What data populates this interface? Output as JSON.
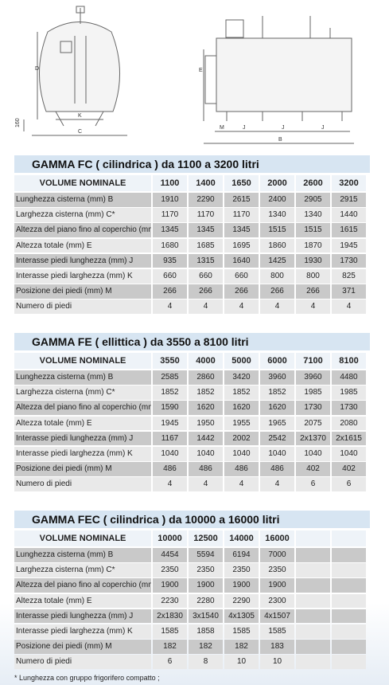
{
  "drawings": {
    "labels": [
      "D",
      "K",
      "C",
      "160",
      "E",
      "M",
      "J",
      "J",
      "J",
      "B"
    ]
  },
  "tables": [
    {
      "title": "GAMMA FC ( cilindrica ) da 1100 a 3200 litri",
      "header": [
        "VOLUME NOMINALE",
        "1100",
        "1400",
        "1650",
        "2000",
        "2600",
        "3200"
      ],
      "rows": [
        [
          "Lunghezza cisterna (mm) B",
          "1910",
          "2290",
          "2615",
          "2400",
          "2905",
          "2915"
        ],
        [
          "Larghezza cisterna (mm) C*",
          "1170",
          "1170",
          "1170",
          "1340",
          "1340",
          "1440"
        ],
        [
          "Altezza del piano fino al coperchio (mm) D",
          "1345",
          "1345",
          "1345",
          "1515",
          "1515",
          "1615"
        ],
        [
          "Altezza totale (mm) E",
          "1680",
          "1685",
          "1695",
          "1860",
          "1870",
          "1945"
        ],
        [
          "Interasse piedi lunghezza (mm) J",
          "935",
          "1315",
          "1640",
          "1425",
          "1930",
          "1730"
        ],
        [
          "Interasse piedi larghezza (mm) K",
          "660",
          "660",
          "660",
          "800",
          "800",
          "825"
        ],
        [
          "Posizione dei piedi (mm) M",
          "266",
          "266",
          "266",
          "266",
          "266",
          "371"
        ],
        [
          "Numero di piedi",
          "4",
          "4",
          "4",
          "4",
          "4",
          "4"
        ]
      ]
    },
    {
      "title": "GAMMA FE ( ellittica ) da 3550 a 8100 litri",
      "header": [
        "VOLUME NOMINALE",
        "3550",
        "4000",
        "5000",
        "6000",
        "7100",
        "8100"
      ],
      "rows": [
        [
          "Lunghezza cisterna (mm) B",
          "2585",
          "2860",
          "3420",
          "3960",
          "3960",
          "4480"
        ],
        [
          "Larghezza cisterna (mm) C*",
          "1852",
          "1852",
          "1852",
          "1852",
          "1985",
          "1985"
        ],
        [
          "Altezza del piano fino al coperchio (mm) D",
          "1590",
          "1620",
          "1620",
          "1620",
          "1730",
          "1730"
        ],
        [
          "Altezza totale (mm) E",
          "1945",
          "1950",
          "1955",
          "1965",
          "2075",
          "2080"
        ],
        [
          "Interasse piedi lunghezza (mm) J",
          "1167",
          "1442",
          "2002",
          "2542",
          "2x1370",
          "2x1615"
        ],
        [
          "Interasse piedi larghezza (mm) K",
          "1040",
          "1040",
          "1040",
          "1040",
          "1040",
          "1040"
        ],
        [
          "Posizione dei piedi (mm) M",
          "486",
          "486",
          "486",
          "486",
          "402",
          "402"
        ],
        [
          "Numero di piedi",
          "4",
          "4",
          "4",
          "4",
          "6",
          "6"
        ]
      ]
    },
    {
      "title": "GAMMA FEC ( cilindrica ) da 10000 a 16000 litri",
      "header": [
        "VOLUME NOMINALE",
        "10000",
        "12500",
        "14000",
        "16000"
      ],
      "rows": [
        [
          "Lunghezza cisterna (mm) B",
          "4454",
          "5594",
          "6194",
          "7000"
        ],
        [
          "Larghezza cisterna (mm) C*",
          "2350",
          "2350",
          "2350",
          "2350"
        ],
        [
          "Altezza del piano fino al coperchio (mm) D",
          "1900",
          "1900",
          "1900",
          "1900"
        ],
        [
          "Altezza totale (mm) E",
          "2230",
          "2280",
          "2290",
          "2300"
        ],
        [
          "Interasse piedi lunghezza (mm) J",
          "2x1830",
          "3x1540",
          "4x1305",
          "4x1507"
        ],
        [
          "Interasse piedi larghezza (mm) K",
          "1585",
          "1858",
          "1585",
          "1585"
        ],
        [
          "Posizione dei piedi (mm) M",
          "182",
          "182",
          "182",
          "183"
        ],
        [
          "Numero di piedi",
          "6",
          "8",
          "10",
          "10"
        ]
      ]
    }
  ],
  "footnote": "* Lunghezza con gruppo frigorifero compatto ;"
}
